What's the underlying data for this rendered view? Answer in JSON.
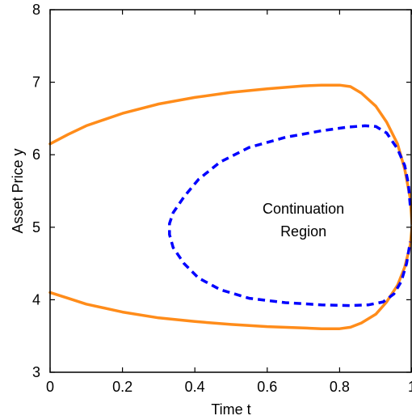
{
  "chart_data": {
    "type": "line",
    "title": "",
    "xlabel": "Time t",
    "ylabel": "Asset Price y",
    "xlim": [
      0,
      1
    ],
    "ylim": [
      3,
      8
    ],
    "xticks": [
      0,
      0.2,
      0.4,
      0.6,
      0.8,
      1
    ],
    "xtick_labels": [
      "0",
      "0.2",
      "0.4",
      "0.6",
      "0.8",
      "1"
    ],
    "yticks": [
      3,
      4,
      5,
      6,
      7,
      8
    ],
    "ytick_labels": [
      "3",
      "4",
      "5",
      "6",
      "7",
      "8"
    ],
    "grid": false,
    "annotation": {
      "lines": [
        "Continuation",
        "Region"
      ],
      "x": 0.7,
      "y": 5.0
    },
    "series": [
      {
        "color": "#ff8c1a",
        "style": "solid",
        "x": [
          0,
          0.05,
          0.1,
          0.2,
          0.3,
          0.4,
          0.5,
          0.6,
          0.7,
          0.75,
          0.8,
          0.83,
          0.86,
          0.9,
          0.93,
          0.96,
          0.98,
          0.995,
          1.0
        ],
        "y": [
          6.15,
          6.28,
          6.4,
          6.57,
          6.7,
          6.79,
          6.86,
          6.91,
          6.95,
          6.96,
          6.96,
          6.94,
          6.85,
          6.67,
          6.45,
          6.15,
          5.8,
          5.4,
          5.05
        ]
      },
      {
        "color": "#ff8c1a",
        "style": "solid",
        "x": [
          0,
          0.05,
          0.1,
          0.2,
          0.3,
          0.4,
          0.5,
          0.6,
          0.7,
          0.75,
          0.8,
          0.83,
          0.86,
          0.9,
          0.93,
          0.96,
          0.98,
          0.995,
          1.0
        ],
        "y": [
          4.1,
          4.02,
          3.94,
          3.83,
          3.75,
          3.7,
          3.66,
          3.63,
          3.61,
          3.6,
          3.6,
          3.62,
          3.68,
          3.8,
          3.97,
          4.2,
          4.45,
          4.75,
          5.0
        ]
      },
      {
        "color": "#0000ff",
        "style": "dashed",
        "x": [
          0.995,
          0.99,
          0.98,
          0.96,
          0.93,
          0.9,
          0.87,
          0.82,
          0.75,
          0.65,
          0.55,
          0.47,
          0.41,
          0.37,
          0.34,
          0.33,
          0.33,
          0.34,
          0.37,
          0.41,
          0.47,
          0.55,
          0.65,
          0.75,
          0.83,
          0.88,
          0.92,
          0.95,
          0.97,
          0.985,
          0.995
        ],
        "y": [
          5.3,
          5.6,
          5.85,
          6.08,
          6.3,
          6.39,
          6.4,
          6.38,
          6.33,
          6.24,
          6.1,
          5.9,
          5.66,
          5.42,
          5.2,
          5.05,
          4.9,
          4.72,
          4.5,
          4.3,
          4.14,
          4.02,
          3.96,
          3.93,
          3.92,
          3.93,
          3.97,
          4.08,
          4.25,
          4.5,
          4.8
        ]
      }
    ]
  }
}
